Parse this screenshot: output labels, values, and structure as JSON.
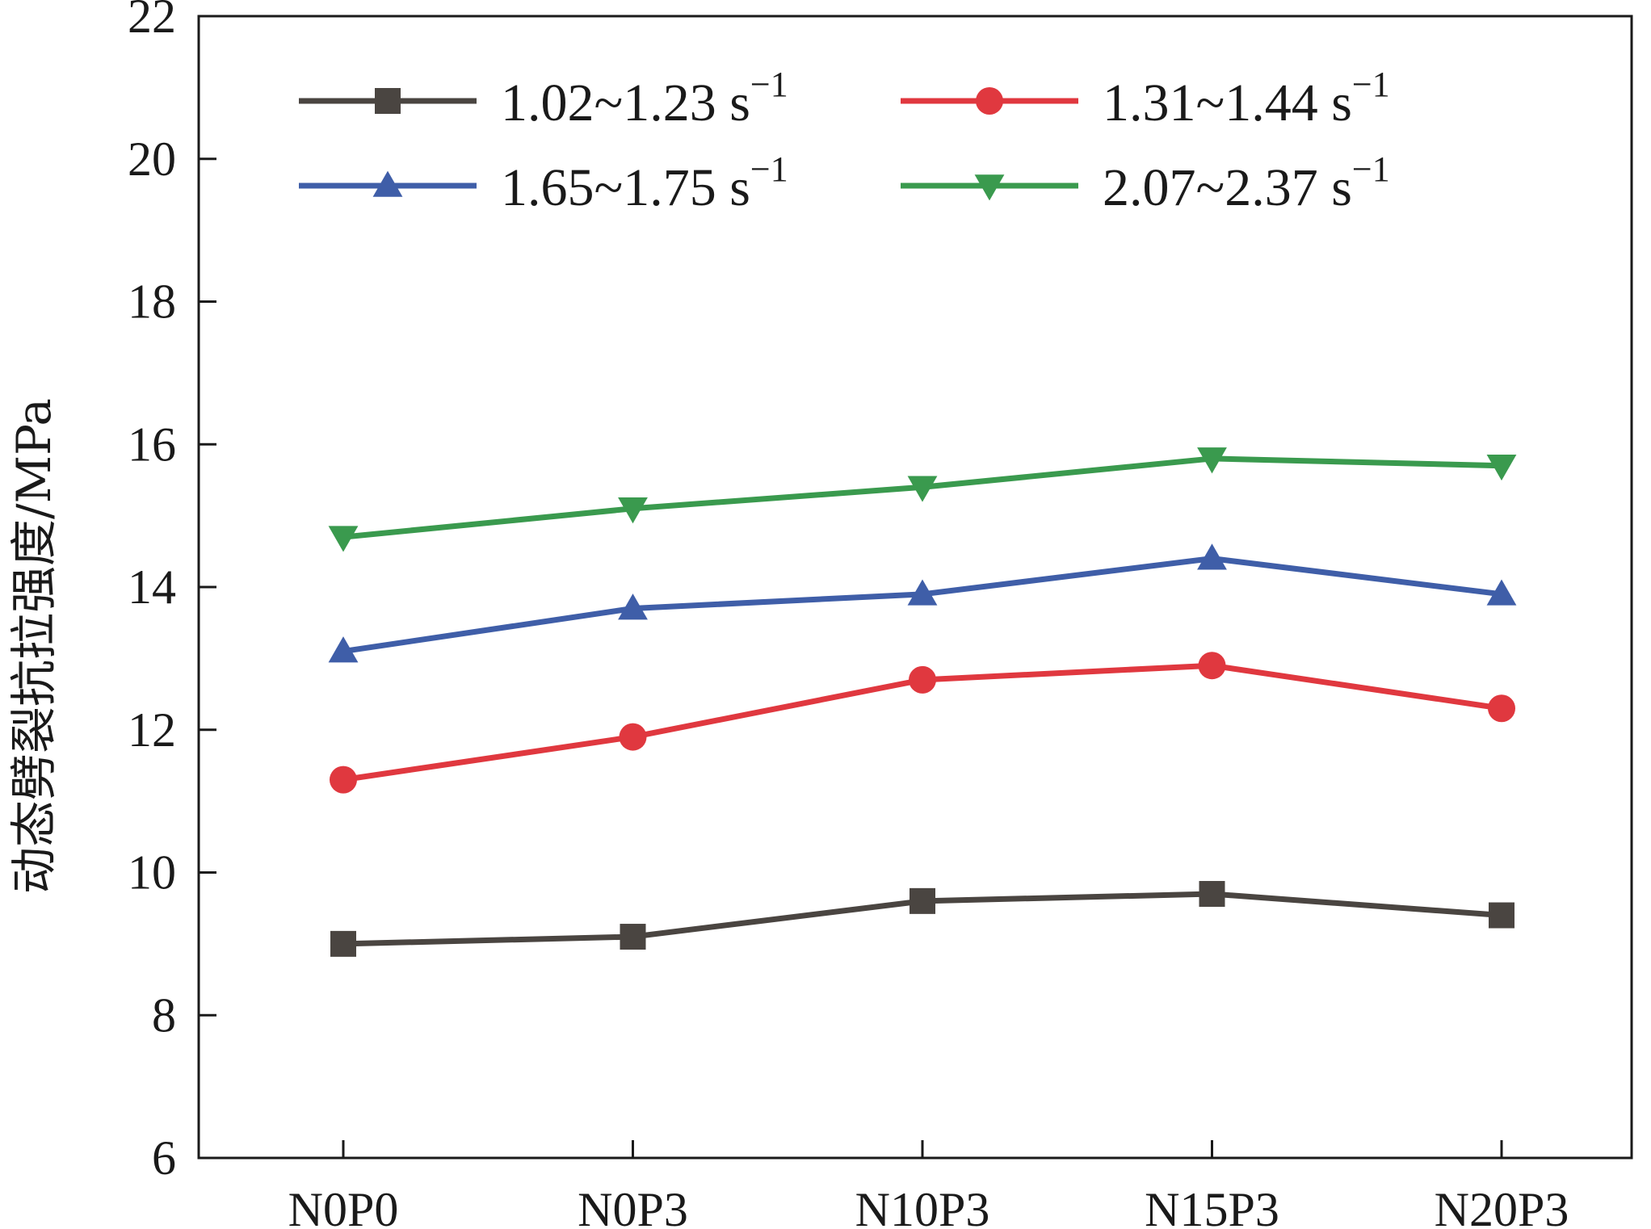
{
  "chart_data": {
    "type": "line",
    "title": "",
    "xlabel": "",
    "ylabel": "动态劈裂抗拉强度/MPa",
    "categories": [
      "N0P0",
      "N0P3",
      "N10P3",
      "N15P3",
      "N20P3"
    ],
    "ylim": [
      6,
      22
    ],
    "yticks": [
      6,
      8,
      10,
      12,
      14,
      16,
      18,
      20,
      22
    ],
    "grid": false,
    "legend_position": "top",
    "series": [
      {
        "name": "1.02~1.23 s",
        "name_superscript": "−1",
        "marker": "square",
        "color": "#4a4541",
        "values": [
          9.0,
          9.1,
          9.6,
          9.7,
          9.4
        ]
      },
      {
        "name": "1.31~1.44 s",
        "name_superscript": "−1",
        "marker": "circle",
        "color": "#e0383f",
        "values": [
          11.3,
          11.9,
          12.7,
          12.9,
          12.3
        ]
      },
      {
        "name": "1.65~1.75 s",
        "name_superscript": "−1",
        "marker": "triangle-up",
        "color": "#3f5ea8",
        "values": [
          13.1,
          13.7,
          13.9,
          14.4,
          13.9
        ]
      },
      {
        "name": "2.07~2.37 s",
        "name_superscript": "−1",
        "marker": "triangle-down",
        "color": "#3a9a4e",
        "values": [
          14.7,
          15.1,
          15.4,
          15.8,
          15.7
        ]
      }
    ]
  }
}
